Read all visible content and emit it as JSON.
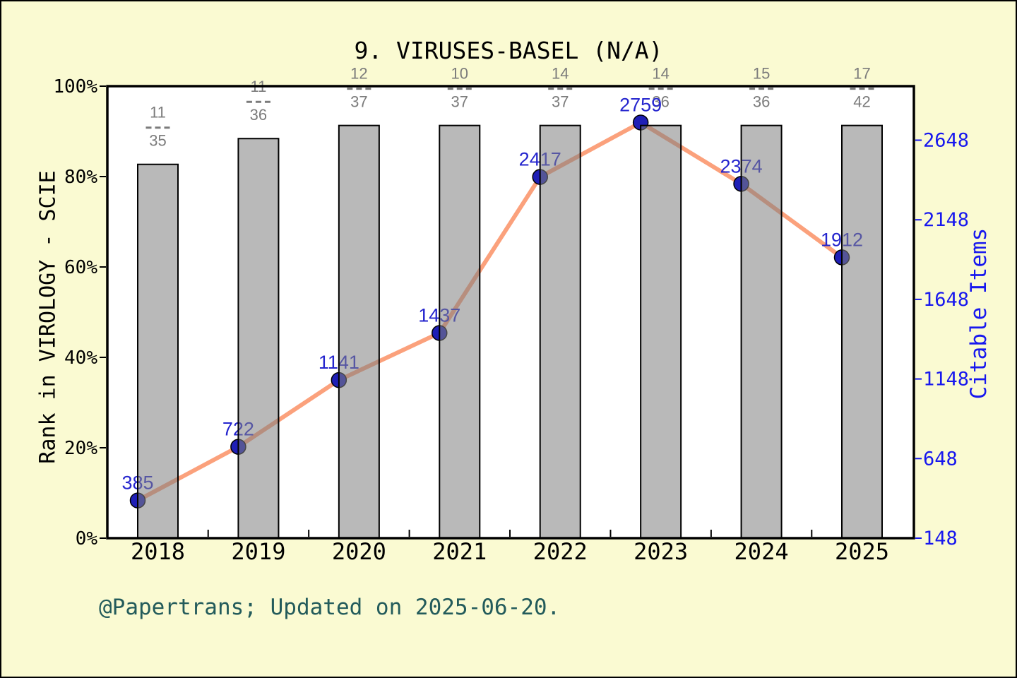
{
  "title": "9. VIRUSES-BASEL (N/A)",
  "footer": "@Papertrans; Updated on 2025-06-20.",
  "axes": {
    "left": {
      "label": "Rank in VIROLOGY - SCIE",
      "ticks": [
        "0%",
        "20%",
        "40%",
        "60%",
        "80%",
        "100%"
      ]
    },
    "right": {
      "label": "Citable Items",
      "ticks": [
        "148",
        "648",
        "1148",
        "1648",
        "2148",
        "2648"
      ]
    },
    "x": {
      "ticks": [
        "2018",
        "2019",
        "2020",
        "2021",
        "2022",
        "2023",
        "2024",
        "2025"
      ]
    }
  },
  "chart_data": {
    "type": "bar+line",
    "title": "9. VIRUSES-BASEL (N/A)",
    "categories": [
      "2018",
      "2019",
      "2020",
      "2021",
      "2022",
      "2023",
      "2024",
      "2025"
    ],
    "series": [
      {
        "name": "rank-bars",
        "type": "bar",
        "axis": "left-percent",
        "values": [
          82.7,
          88.4,
          91.3,
          91.3,
          91.3,
          91.3,
          91.3,
          91.3
        ]
      },
      {
        "name": "citable-items",
        "type": "line",
        "axis": "right",
        "values": [
          385,
          722,
          1141,
          1437,
          2417,
          2759,
          2374,
          1912
        ]
      }
    ],
    "rank_fractions": [
      {
        "num": "11",
        "den": "35"
      },
      {
        "num": "11",
        "den": "36"
      },
      {
        "num": "12",
        "den": "37"
      },
      {
        "num": "10",
        "den": "37"
      },
      {
        "num": "14",
        "den": "37"
      },
      {
        "num": "14",
        "den": "36"
      },
      {
        "num": "15",
        "den": "36"
      },
      {
        "num": "17",
        "den": "42"
      }
    ],
    "xlabel": "",
    "ylabel_left": "Rank in VIROLOGY - SCIE",
    "ylabel_right": "Citable Items",
    "ylim_left_percent": [
      0,
      100
    ],
    "y_right_min": 148,
    "y_right_tick_step": 500,
    "grid": false,
    "legend": false
  },
  "colors": {
    "background": "#FAFAD2",
    "plot_background": "#FFFFFF",
    "bar_fill": "#808080",
    "bar_fill_opacity": "0.55",
    "bar_edge": "#000000",
    "line": "#FBA17C",
    "point_fill": "#1F1FB6",
    "point_edge": "#000000",
    "value_label": "#2525CE",
    "right_axis_text": "#1717EE",
    "fraction_text": "#7B7B7B",
    "axis_text": "#000000",
    "footer_text": "#235B5B"
  }
}
